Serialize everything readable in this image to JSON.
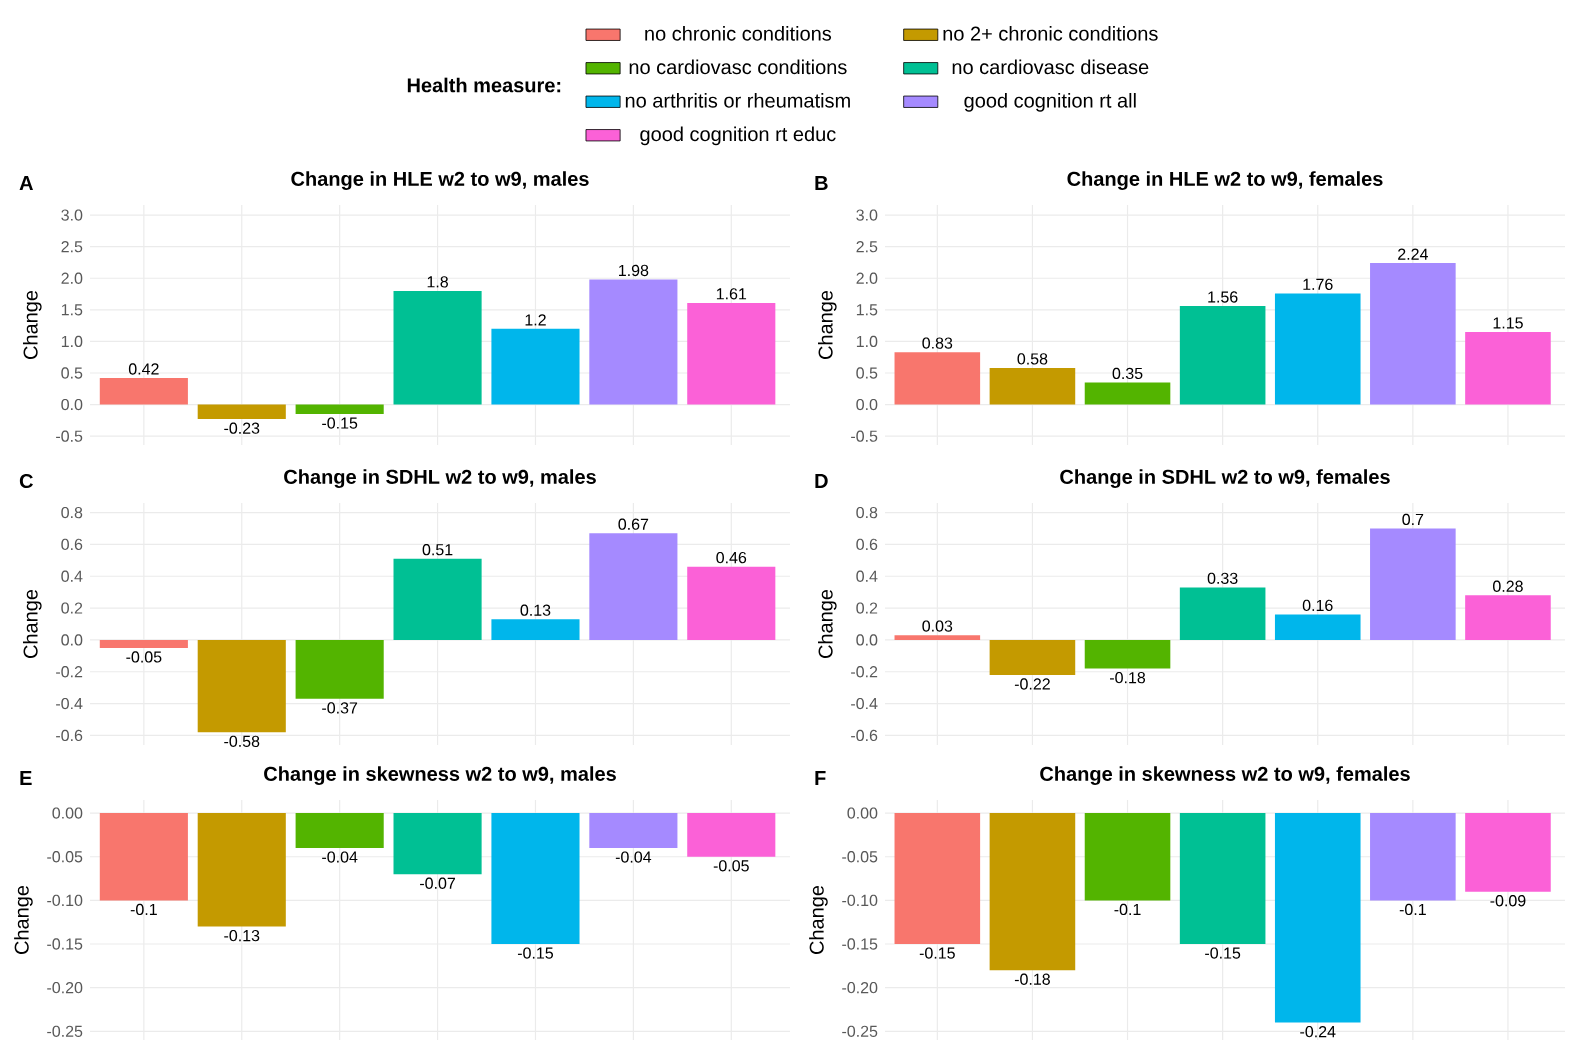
{
  "chart_data": [
    {
      "type": "bar",
      "title": "Change in HLE w2 to w9, males",
      "ylabel": "Change",
      "annotations": [
        "A"
      ],
      "legend": "top",
      "legend_title": "Health measure:",
      "categories": [
        null
      ],
      "series": [
        {
          "name": "no chronic conditions",
          "color": "#F8766D",
          "values": [
            0.42
          ]
        },
        {
          "name": "no 2+ chronic conditions",
          "color": "#C49A00",
          "values": [
            -0.23
          ]
        },
        {
          "name": "no cardiovasc conditions",
          "color": "#53B400",
          "values": [
            -0.15
          ]
        },
        {
          "name": "no cardiovasc disease",
          "color": "#00C094",
          "values": [
            1.8
          ]
        },
        {
          "name": "no arthritis or rheumatism",
          "color": "#00B6EB",
          "values": [
            1.2
          ]
        },
        {
          "name": "good cognition rt all",
          "color": "#A58AFF",
          "values": [
            1.98
          ]
        },
        {
          "name": "good cognition rt educ",
          "color": "#FB61D7",
          "values": [
            1.61
          ]
        }
      ],
      "data_labels": true,
      "grid": true,
      "tick_labels": "y",
      "ylim": [
        -0.64,
        3.16
      ],
      "yticks": [
        {
          "value": -0.5,
          "label": "-0.5"
        },
        {
          "value": 0,
          "label": "0.0"
        },
        {
          "value": 0.5,
          "label": "0.5"
        },
        {
          "value": 1,
          "label": "1.0"
        },
        {
          "value": 1.5,
          "label": "1.5"
        },
        {
          "value": 2,
          "label": "2.0"
        },
        {
          "value": 2.5,
          "label": "2.5"
        },
        {
          "value": 3,
          "label": "3.0"
        }
      ]
    },
    {
      "type": "bar",
      "title": "Change in HLE w2 to w9, females",
      "ylabel": "Change",
      "annotations": [
        "B"
      ],
      "categories": [
        null
      ],
      "series": [
        {
          "color": "#F8766D",
          "values": [
            0.83
          ]
        },
        {
          "color": "#C49A00",
          "values": [
            0.58
          ]
        },
        {
          "color": "#53B400",
          "values": [
            0.35
          ]
        },
        {
          "color": "#00C094",
          "values": [
            1.56
          ]
        },
        {
          "color": "#00B6EB",
          "values": [
            1.76
          ]
        },
        {
          "color": "#A58AFF",
          "values": [
            2.24
          ]
        },
        {
          "color": "#FB61D7",
          "values": [
            1.15
          ]
        }
      ],
      "data_labels": true,
      "grid": true,
      "tick_labels": "y",
      "ylim": [
        -0.64,
        3.16
      ],
      "yticks": [
        {
          "value": -0.5,
          "label": "-0.5"
        },
        {
          "value": 0,
          "label": "0.0"
        },
        {
          "value": 0.5,
          "label": "0.5"
        },
        {
          "value": 1,
          "label": "1.0"
        },
        {
          "value": 1.5,
          "label": "1.5"
        },
        {
          "value": 2,
          "label": "2.0"
        },
        {
          "value": 2.5,
          "label": "2.5"
        },
        {
          "value": 3,
          "label": "3.0"
        }
      ]
    },
    {
      "type": "bar",
      "title": "Change in SDHL w2 to w9, males",
      "ylabel": "Change",
      "annotations": [
        "C"
      ],
      "categories": [
        null
      ],
      "series": [
        {
          "color": "#F8766D",
          "values": [
            -0.05
          ]
        },
        {
          "color": "#C49A00",
          "values": [
            -0.58
          ]
        },
        {
          "color": "#53B400",
          "values": [
            -0.37
          ]
        },
        {
          "color": "#00C094",
          "values": [
            0.51
          ]
        },
        {
          "color": "#00B6EB",
          "values": [
            0.13
          ]
        },
        {
          "color": "#A58AFF",
          "values": [
            0.67
          ]
        },
        {
          "color": "#FB61D7",
          "values": [
            0.46
          ]
        }
      ],
      "data_labels": true,
      "grid": true,
      "tick_labels": "y",
      "ylim": [
        -0.66,
        0.86
      ],
      "yticks": [
        {
          "value": -0.6,
          "label": "-0.6"
        },
        {
          "value": -0.4,
          "label": "-0.4"
        },
        {
          "value": -0.2,
          "label": "-0.2"
        },
        {
          "value": 0,
          "label": "0.0"
        },
        {
          "value": 0.2,
          "label": "0.2"
        },
        {
          "value": 0.4,
          "label": "0.4"
        },
        {
          "value": 0.6,
          "label": "0.6"
        },
        {
          "value": 0.8,
          "label": "0.8"
        }
      ]
    },
    {
      "type": "bar",
      "title": "Change in SDHL w2 to w9, females",
      "ylabel": "Change",
      "annotations": [
        "D"
      ],
      "categories": [
        null
      ],
      "series": [
        {
          "color": "#F8766D",
          "values": [
            0.03
          ]
        },
        {
          "color": "#C49A00",
          "values": [
            -0.22
          ]
        },
        {
          "color": "#53B400",
          "values": [
            -0.18
          ]
        },
        {
          "color": "#00C094",
          "values": [
            0.33
          ]
        },
        {
          "color": "#00B6EB",
          "values": [
            0.16
          ]
        },
        {
          "color": "#A58AFF",
          "values": [
            0.7
          ]
        },
        {
          "color": "#FB61D7",
          "values": [
            0.28
          ]
        }
      ],
      "data_labels": true,
      "grid": true,
      "tick_labels": "y",
      "ylim": [
        -0.66,
        0.86
      ],
      "yticks": [
        {
          "value": -0.6,
          "label": "-0.6"
        },
        {
          "value": -0.4,
          "label": "-0.4"
        },
        {
          "value": -0.2,
          "label": "-0.2"
        },
        {
          "value": 0,
          "label": "0.0"
        },
        {
          "value": 0.2,
          "label": "0.2"
        },
        {
          "value": 0.4,
          "label": "0.4"
        },
        {
          "value": 0.6,
          "label": "0.6"
        },
        {
          "value": 0.8,
          "label": "0.8"
        }
      ]
    },
    {
      "type": "bar",
      "title": "Change in skewness w2 to w9, males",
      "ylabel": "Change",
      "annotations": [
        "E"
      ],
      "categories": [
        null
      ],
      "series": [
        {
          "color": "#F8766D",
          "values": [
            -0.1
          ]
        },
        {
          "color": "#C49A00",
          "values": [
            -0.13
          ]
        },
        {
          "color": "#53B400",
          "values": [
            -0.04
          ]
        },
        {
          "color": "#00C094",
          "values": [
            -0.07
          ]
        },
        {
          "color": "#00B6EB",
          "values": [
            -0.15
          ]
        },
        {
          "color": "#A58AFF",
          "values": [
            -0.04
          ]
        },
        {
          "color": "#FB61D7",
          "values": [
            -0.05
          ]
        }
      ],
      "data_labels": true,
      "grid": true,
      "tick_labels": "y",
      "ylim": [
        -0.26,
        0.015
      ],
      "yticks": [
        {
          "value": -0.25,
          "label": "-0.25"
        },
        {
          "value": -0.2,
          "label": "-0.20"
        },
        {
          "value": -0.15,
          "label": "-0.15"
        },
        {
          "value": -0.1,
          "label": "-0.10"
        },
        {
          "value": -0.05,
          "label": "-0.05"
        },
        {
          "value": 0,
          "label": "0.00"
        }
      ]
    },
    {
      "type": "bar",
      "title": "Change in skewness w2 to w9, females",
      "ylabel": "Change",
      "annotations": [
        "F"
      ],
      "categories": [
        null
      ],
      "series": [
        {
          "color": "#F8766D",
          "values": [
            -0.15
          ]
        },
        {
          "color": "#C49A00",
          "values": [
            -0.18
          ]
        },
        {
          "color": "#53B400",
          "values": [
            -0.1
          ]
        },
        {
          "color": "#00C094",
          "values": [
            -0.15
          ]
        },
        {
          "color": "#00B6EB",
          "values": [
            -0.24
          ]
        },
        {
          "color": "#A58AFF",
          "values": [
            -0.1
          ]
        },
        {
          "color": "#FB61D7",
          "values": [
            -0.09
          ]
        }
      ],
      "data_labels": true,
      "grid": true,
      "tick_labels": "y",
      "ylim": [
        -0.26,
        0.015
      ],
      "yticks": [
        {
          "value": -0.25,
          "label": "-0.25"
        },
        {
          "value": -0.2,
          "label": "-0.20"
        },
        {
          "value": -0.15,
          "label": "-0.15"
        },
        {
          "value": -0.1,
          "label": "-0.10"
        },
        {
          "value": -0.05,
          "label": "-0.05"
        },
        {
          "value": 0,
          "label": "0.00"
        }
      ]
    }
  ]
}
